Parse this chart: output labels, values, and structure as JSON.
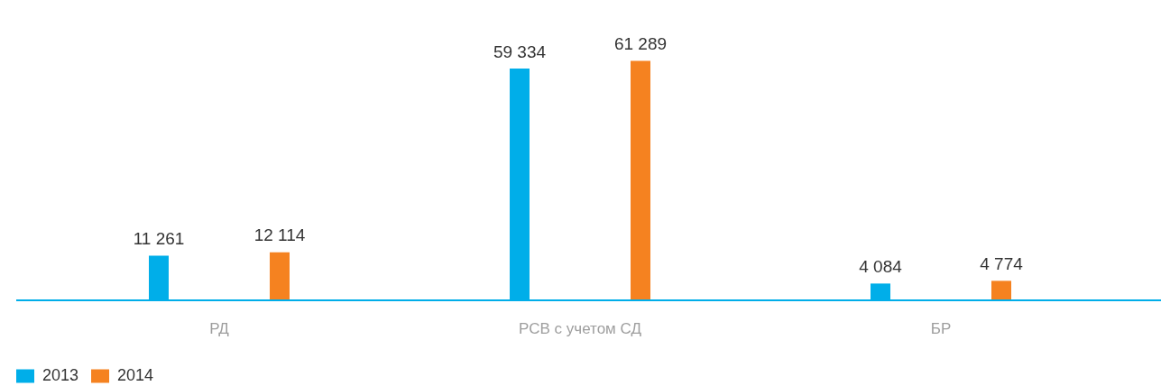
{
  "chart_data": {
    "type": "bar",
    "categories": [
      "РД",
      "РСВ с учетом СД",
      "БР"
    ],
    "series": [
      {
        "name": "2013",
        "color": "#00aee9",
        "values": [
          11261,
          59334,
          4084
        ],
        "value_labels": [
          "11 261",
          "59 334",
          "4 084"
        ]
      },
      {
        "name": "2014",
        "color": "#f58220",
        "values": [
          12114,
          61289,
          4774
        ],
        "value_labels": [
          "12 114",
          "61 289",
          "4 774"
        ]
      }
    ],
    "legend": "bottom left",
    "tick_labels": "x"
  }
}
